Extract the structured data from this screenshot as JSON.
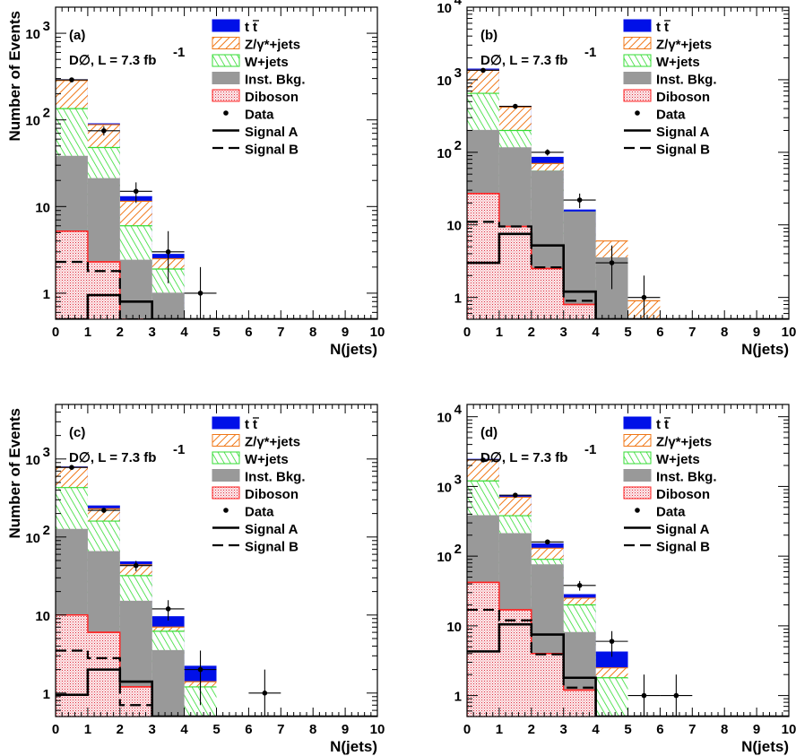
{
  "colors": {
    "ttbar": "#0010e8",
    "zjets_fill": "#ffffff",
    "zjets_hatch": "#f07818",
    "wjets_fill": "#ffffff",
    "wjets_hatch": "#33dd33",
    "inst": "#999999",
    "diboson_fill": "#fbe8ea",
    "diboson_hatch": "#e03040",
    "diboson_line": "#ff2020",
    "data": "#000000"
  },
  "legend": {
    "ttbar": "t",
    "ttbar_bar": "t",
    "zjets": "Z/γ*+jets",
    "wjets": "W+jets",
    "inst": "Inst. Bkg.",
    "diboson": "Diboson",
    "data": "Data",
    "sigA": "Signal A",
    "sigB": "Signal B"
  },
  "labels": {
    "ylabel": "Number of Events",
    "xlabel": "N(jets)",
    "experiment": "D∅, L = 7.3 fb",
    "experiment_sup": "-1"
  },
  "chart_data": [
    {
      "type": "bar",
      "panel": "(a)",
      "xlabel": "N(jets)",
      "ylabel": "Number of Events",
      "xlim": [
        0,
        10
      ],
      "ylim": [
        0.5,
        2000
      ],
      "yscale": "log",
      "xticks": [
        "0",
        "1",
        "2",
        "3",
        "4",
        "5",
        "6",
        "7",
        "8",
        "9",
        "10"
      ],
      "yticks": [
        {
          "v": 1,
          "b": "1"
        },
        {
          "v": 10,
          "b": "10"
        },
        {
          "v": 100,
          "b": "10",
          "e": "2"
        },
        {
          "v": 1000,
          "b": "10",
          "e": "3"
        }
      ],
      "bins": [
        0,
        1,
        2,
        3,
        4,
        5,
        6,
        7,
        8,
        9,
        10
      ],
      "stack_cumulative": {
        "diboson": [
          5.2,
          2.3,
          0.5,
          0.5,
          0.5,
          0.5,
          0.5,
          0.5,
          0.5,
          0.5
        ],
        "inst": [
          38,
          21,
          2.4,
          1.0,
          0.5,
          0.5,
          0.5,
          0.5,
          0.5,
          0.5
        ],
        "wjets": [
          135,
          48,
          6.0,
          1.9,
          0.5,
          0.5,
          0.5,
          0.5,
          0.5,
          0.5
        ],
        "zjets": [
          285,
          88,
          11.5,
          2.5,
          0.5,
          0.5,
          0.5,
          0.5,
          0.5,
          0.5
        ],
        "ttbar": [
          290,
          90,
          13,
          2.8,
          0.5,
          0.5,
          0.5,
          0.5,
          0.5,
          0.5
        ]
      },
      "signalA": [
        0.5,
        0.95,
        0.8,
        0.5,
        0.5,
        0.5,
        0.5,
        0.5,
        0.5,
        0.5
      ],
      "signalB": [
        2.3,
        1.8,
        0.5,
        0.5,
        0.5,
        0.5,
        0.5,
        0.5,
        0.5,
        0.5
      ],
      "data": [
        {
          "x": 0.5,
          "y": 290,
          "lo": 17,
          "hi": 17
        },
        {
          "x": 1.5,
          "y": 75,
          "lo": 9,
          "hi": 9
        },
        {
          "x": 2.5,
          "y": 15,
          "lo": 4,
          "hi": 4
        },
        {
          "x": 3.5,
          "y": 3,
          "lo": 1.7,
          "hi": 2.2
        },
        {
          "x": 4.5,
          "y": 1,
          "lo": 0.5,
          "hi": 1.0
        }
      ]
    },
    {
      "type": "bar",
      "panel": "(b)",
      "xlabel": "N(jets)",
      "ylabel": "",
      "xlim": [
        0,
        10
      ],
      "ylim": [
        0.5,
        10000
      ],
      "yscale": "log",
      "xticks": [
        "0",
        "1",
        "2",
        "3",
        "4",
        "5",
        "6",
        "7",
        "8",
        "9",
        "10"
      ],
      "yticks": [
        {
          "v": 1,
          "b": "1"
        },
        {
          "v": 10,
          "b": "10"
        },
        {
          "v": 100,
          "b": "10",
          "e": "2"
        },
        {
          "v": 1000,
          "b": "10",
          "e": "3"
        },
        {
          "v": 10000,
          "b": "10",
          "e": "4"
        }
      ],
      "bins": [
        0,
        1,
        2,
        3,
        4,
        5,
        6,
        7,
        8,
        9,
        10
      ],
      "stack_cumulative": {
        "diboson": [
          27,
          9.5,
          2.5,
          0.8,
          0.5,
          0.5,
          0.5,
          0.5,
          0.5,
          0.5
        ],
        "inst": [
          200,
          115,
          55,
          15,
          3.5,
          0.5,
          0.5,
          0.5,
          0.5,
          0.5
        ],
        "wjets": [
          650,
          200,
          55,
          15,
          3.5,
          0.5,
          0.5,
          0.5,
          0.5,
          0.5
        ],
        "zjets": [
          1350,
          420,
          70,
          10.5,
          6,
          0.9,
          0.5,
          0.5,
          0.5,
          0.5
        ],
        "ttbar": [
          1400,
          430,
          85,
          16,
          1.8,
          0.5,
          0.5,
          0.5,
          0.5,
          0.5
        ]
      },
      "signalA": [
        3,
        7.5,
        5.2,
        1.2,
        0.5,
        0.5,
        0.5,
        0.5,
        0.5,
        0.5
      ],
      "signalB": [
        11,
        9.5,
        2.6,
        0.9,
        0.5,
        0.5,
        0.5,
        0.5,
        0.5,
        0.5
      ],
      "data": [
        {
          "x": 0.5,
          "y": 1350,
          "lo": 40,
          "hi": 40
        },
        {
          "x": 1.5,
          "y": 430,
          "lo": 20,
          "hi": 20
        },
        {
          "x": 2.5,
          "y": 100,
          "lo": 10,
          "hi": 10
        },
        {
          "x": 3.5,
          "y": 22,
          "lo": 5,
          "hi": 5
        },
        {
          "x": 4.5,
          "y": 3,
          "lo": 1.7,
          "hi": 2.2
        },
        {
          "x": 5.5,
          "y": 1,
          "lo": 0.5,
          "hi": 1.0
        }
      ]
    },
    {
      "type": "bar",
      "panel": "(c)",
      "xlabel": "N(jets)",
      "ylabel": "Number of Events",
      "xlim": [
        0,
        10
      ],
      "ylim": [
        0.5,
        5000
      ],
      "yscale": "log",
      "xticks": [
        "0",
        "1",
        "2",
        "3",
        "4",
        "5",
        "6",
        "7",
        "8",
        "9",
        "10"
      ],
      "yticks": [
        {
          "v": 1,
          "b": "1"
        },
        {
          "v": 10,
          "b": "10"
        },
        {
          "v": 100,
          "b": "10",
          "e": "2"
        },
        {
          "v": 1000,
          "b": "10",
          "e": "3"
        }
      ],
      "bins": [
        0,
        1,
        2,
        3,
        4,
        5,
        6,
        7,
        8,
        9,
        10
      ],
      "stack_cumulative": {
        "diboson": [
          10,
          6,
          1.2,
          0.5,
          0.5,
          0.5,
          0.5,
          0.5,
          0.5,
          0.5
        ],
        "inst": [
          125,
          65,
          15,
          3.5,
          0.5,
          0.5,
          0.5,
          0.5,
          0.5,
          0.5
        ],
        "wjets": [
          430,
          160,
          32,
          6.2,
          1.2,
          0.5,
          0.5,
          0.5,
          0.5,
          0.5
        ],
        "zjets": [
          780,
          230,
          44,
          7.0,
          1.4,
          0.5,
          0.5,
          0.5,
          0.5,
          0.5
        ],
        "ttbar": [
          790,
          250,
          48,
          9.5,
          2.2,
          0.5,
          0.5,
          0.5,
          0.5,
          0.5
        ]
      },
      "signalA": [
        0.95,
        2.0,
        1.4,
        0.5,
        0.5,
        0.5,
        0.5,
        0.5,
        0.5,
        0.5
      ],
      "signalB": [
        3.5,
        2.8,
        0.7,
        0.5,
        0.5,
        0.5,
        0.5,
        0.5,
        0.5,
        0.5
      ],
      "data": [
        {
          "x": 0.5,
          "y": 780,
          "lo": 28,
          "hi": 28
        },
        {
          "x": 1.5,
          "y": 220,
          "lo": 15,
          "hi": 15
        },
        {
          "x": 2.5,
          "y": 43,
          "lo": 6.5,
          "hi": 6.5
        },
        {
          "x": 3.5,
          "y": 12,
          "lo": 3.5,
          "hi": 3.5
        },
        {
          "x": 4.5,
          "y": 2,
          "lo": 1.3,
          "hi": 1.5
        },
        {
          "x": 6.5,
          "y": 1,
          "lo": 0.5,
          "hi": 1.0
        }
      ]
    },
    {
      "type": "bar",
      "panel": "(d)",
      "xlabel": "N(jets)",
      "ylabel": "",
      "xlim": [
        0,
        10
      ],
      "ylim": [
        0.5,
        15000
      ],
      "yscale": "log",
      "xticks": [
        "0",
        "1",
        "2",
        "3",
        "4",
        "5",
        "6",
        "7",
        "8",
        "9",
        "10"
      ],
      "yticks": [
        {
          "v": 1,
          "b": "1"
        },
        {
          "v": 10,
          "b": "10"
        },
        {
          "v": 100,
          "b": "10",
          "e": "2"
        },
        {
          "v": 1000,
          "b": "10",
          "e": "3"
        },
        {
          "v": 10000,
          "b": "10",
          "e": "4"
        }
      ],
      "bins": [
        0,
        1,
        2,
        3,
        4,
        5,
        6,
        7,
        8,
        9,
        10
      ],
      "stack_cumulative": {
        "diboson": [
          42,
          17,
          4,
          1.2,
          0.5,
          0.5,
          0.5,
          0.5,
          0.5,
          0.5
        ],
        "inst": [
          380,
          210,
          75,
          8,
          0.5,
          0.5,
          0.5,
          0.5,
          0.5,
          0.5
        ],
        "wjets": [
          1200,
          380,
          90,
          20,
          1.8,
          0.5,
          0.5,
          0.5,
          0.5,
          0.5
        ],
        "zjets": [
          2400,
          700,
          130,
          25,
          2.5,
          0.5,
          0.5,
          0.5,
          0.5,
          0.5
        ],
        "ttbar": [
          2450,
          730,
          150,
          28,
          4.2,
          0.5,
          0.5,
          0.5,
          0.5,
          0.5
        ]
      },
      "signalA": [
        4.3,
        10.5,
        7.5,
        1.8,
        0.5,
        0.5,
        0.5,
        0.5,
        0.5,
        0.5
      ],
      "signalB": [
        17,
        12,
        3.9,
        1.3,
        0.5,
        0.5,
        0.5,
        0.5,
        0.5,
        0.5
      ],
      "data": [
        {
          "x": 0.5,
          "y": 2400,
          "lo": 50,
          "hi": 50
        },
        {
          "x": 1.5,
          "y": 750,
          "lo": 28,
          "hi": 28
        },
        {
          "x": 2.5,
          "y": 160,
          "lo": 13,
          "hi": 13
        },
        {
          "x": 3.5,
          "y": 38,
          "lo": 6,
          "hi": 6
        },
        {
          "x": 4.5,
          "y": 6,
          "lo": 2.4,
          "hi": 2.4
        },
        {
          "x": 5.5,
          "y": 1,
          "lo": 0.5,
          "hi": 1.0
        },
        {
          "x": 6.5,
          "y": 1,
          "lo": 0.5,
          "hi": 1.0
        }
      ]
    }
  ]
}
